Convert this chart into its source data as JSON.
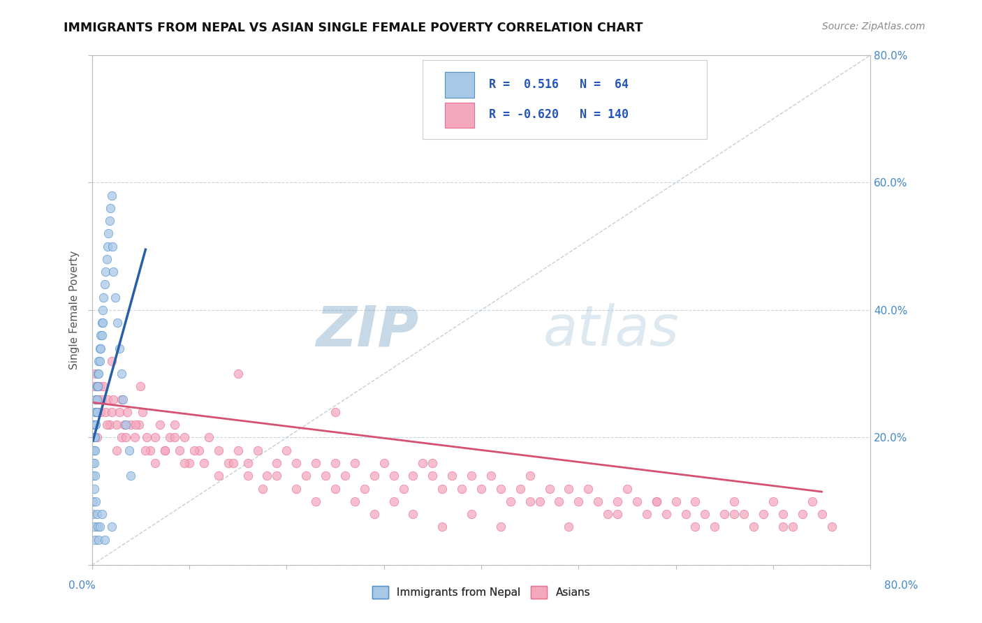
{
  "title": "IMMIGRANTS FROM NEPAL VS ASIAN SINGLE FEMALE POVERTY CORRELATION CHART",
  "source": "Source: ZipAtlas.com",
  "ylabel": "Single Female Poverty",
  "legend_label1": "Immigrants from Nepal",
  "legend_label2": "Asians",
  "blue_color": "#A8C8E8",
  "pink_color": "#F4A8BE",
  "blue_line_color": "#2860A8",
  "pink_line_color": "#D85070",
  "blue_edge_color": "#5090C8",
  "pink_edge_color": "#E87090",
  "watermark_zip_color": "#6090B8",
  "watermark_atlas_color": "#90B8D0",
  "xlim": [
    0.0,
    0.8
  ],
  "ylim": [
    0.0,
    0.8
  ],
  "blue_trend_x": [
    0.001,
    0.055
  ],
  "blue_trend_y": [
    0.195,
    0.495
  ],
  "pink_trend_x": [
    0.001,
    0.75
  ],
  "pink_trend_y": [
    0.255,
    0.115
  ],
  "blue_scatter_x": [
    0.001,
    0.001,
    0.001,
    0.001,
    0.001,
    0.002,
    0.002,
    0.002,
    0.002,
    0.003,
    0.003,
    0.003,
    0.003,
    0.004,
    0.004,
    0.004,
    0.005,
    0.005,
    0.005,
    0.006,
    0.006,
    0.007,
    0.007,
    0.008,
    0.008,
    0.009,
    0.009,
    0.01,
    0.01,
    0.011,
    0.011,
    0.012,
    0.013,
    0.014,
    0.015,
    0.016,
    0.017,
    0.018,
    0.019,
    0.02,
    0.021,
    0.022,
    0.024,
    0.026,
    0.028,
    0.03,
    0.032,
    0.035,
    0.038,
    0.04,
    0.001,
    0.001,
    0.002,
    0.002,
    0.003,
    0.003,
    0.004,
    0.005,
    0.006,
    0.007,
    0.008,
    0.01,
    0.013,
    0.02
  ],
  "blue_scatter_y": [
    0.2,
    0.22,
    0.18,
    0.16,
    0.14,
    0.22,
    0.2,
    0.18,
    0.16,
    0.24,
    0.22,
    0.2,
    0.18,
    0.26,
    0.24,
    0.22,
    0.28,
    0.26,
    0.24,
    0.3,
    0.28,
    0.32,
    0.3,
    0.34,
    0.32,
    0.36,
    0.34,
    0.38,
    0.36,
    0.4,
    0.38,
    0.42,
    0.44,
    0.46,
    0.48,
    0.5,
    0.52,
    0.54,
    0.56,
    0.58,
    0.5,
    0.46,
    0.42,
    0.38,
    0.34,
    0.3,
    0.26,
    0.22,
    0.18,
    0.14,
    0.1,
    0.08,
    0.12,
    0.06,
    0.14,
    0.04,
    0.1,
    0.08,
    0.06,
    0.04,
    0.06,
    0.08,
    0.04,
    0.06
  ],
  "pink_scatter_x": [
    0.002,
    0.003,
    0.004,
    0.005,
    0.006,
    0.007,
    0.008,
    0.009,
    0.01,
    0.012,
    0.014,
    0.016,
    0.018,
    0.02,
    0.022,
    0.025,
    0.028,
    0.03,
    0.033,
    0.036,
    0.04,
    0.044,
    0.048,
    0.052,
    0.056,
    0.06,
    0.065,
    0.07,
    0.075,
    0.08,
    0.085,
    0.09,
    0.095,
    0.1,
    0.11,
    0.12,
    0.13,
    0.14,
    0.15,
    0.16,
    0.17,
    0.18,
    0.19,
    0.2,
    0.21,
    0.22,
    0.23,
    0.24,
    0.25,
    0.26,
    0.27,
    0.28,
    0.29,
    0.3,
    0.31,
    0.32,
    0.33,
    0.34,
    0.35,
    0.36,
    0.37,
    0.38,
    0.39,
    0.4,
    0.41,
    0.42,
    0.43,
    0.44,
    0.45,
    0.46,
    0.47,
    0.48,
    0.49,
    0.5,
    0.51,
    0.52,
    0.53,
    0.54,
    0.55,
    0.56,
    0.57,
    0.58,
    0.59,
    0.6,
    0.61,
    0.62,
    0.63,
    0.64,
    0.65,
    0.66,
    0.67,
    0.68,
    0.69,
    0.7,
    0.71,
    0.72,
    0.73,
    0.74,
    0.75,
    0.76,
    0.005,
    0.015,
    0.025,
    0.035,
    0.045,
    0.055,
    0.065,
    0.075,
    0.085,
    0.095,
    0.105,
    0.115,
    0.13,
    0.145,
    0.16,
    0.175,
    0.19,
    0.21,
    0.23,
    0.25,
    0.27,
    0.29,
    0.31,
    0.33,
    0.36,
    0.39,
    0.42,
    0.45,
    0.49,
    0.54,
    0.58,
    0.62,
    0.66,
    0.71,
    0.35,
    0.25,
    0.15,
    0.05,
    0.03,
    0.02
  ],
  "pink_scatter_y": [
    0.28,
    0.3,
    0.26,
    0.28,
    0.24,
    0.26,
    0.28,
    0.24,
    0.26,
    0.28,
    0.24,
    0.26,
    0.22,
    0.24,
    0.26,
    0.22,
    0.24,
    0.2,
    0.22,
    0.24,
    0.22,
    0.2,
    0.22,
    0.24,
    0.2,
    0.18,
    0.2,
    0.22,
    0.18,
    0.2,
    0.22,
    0.18,
    0.2,
    0.16,
    0.18,
    0.2,
    0.18,
    0.16,
    0.18,
    0.16,
    0.18,
    0.14,
    0.16,
    0.18,
    0.16,
    0.14,
    0.16,
    0.14,
    0.16,
    0.14,
    0.16,
    0.12,
    0.14,
    0.16,
    0.14,
    0.12,
    0.14,
    0.16,
    0.14,
    0.12,
    0.14,
    0.12,
    0.14,
    0.12,
    0.14,
    0.12,
    0.1,
    0.12,
    0.14,
    0.1,
    0.12,
    0.1,
    0.12,
    0.1,
    0.12,
    0.1,
    0.08,
    0.1,
    0.12,
    0.1,
    0.08,
    0.1,
    0.08,
    0.1,
    0.08,
    0.1,
    0.08,
    0.06,
    0.08,
    0.1,
    0.08,
    0.06,
    0.08,
    0.1,
    0.08,
    0.06,
    0.08,
    0.1,
    0.08,
    0.06,
    0.2,
    0.22,
    0.18,
    0.2,
    0.22,
    0.18,
    0.16,
    0.18,
    0.2,
    0.16,
    0.18,
    0.16,
    0.14,
    0.16,
    0.14,
    0.12,
    0.14,
    0.12,
    0.1,
    0.12,
    0.1,
    0.08,
    0.1,
    0.08,
    0.06,
    0.08,
    0.06,
    0.1,
    0.06,
    0.08,
    0.1,
    0.06,
    0.08,
    0.06,
    0.16,
    0.24,
    0.3,
    0.28,
    0.26,
    0.32
  ]
}
